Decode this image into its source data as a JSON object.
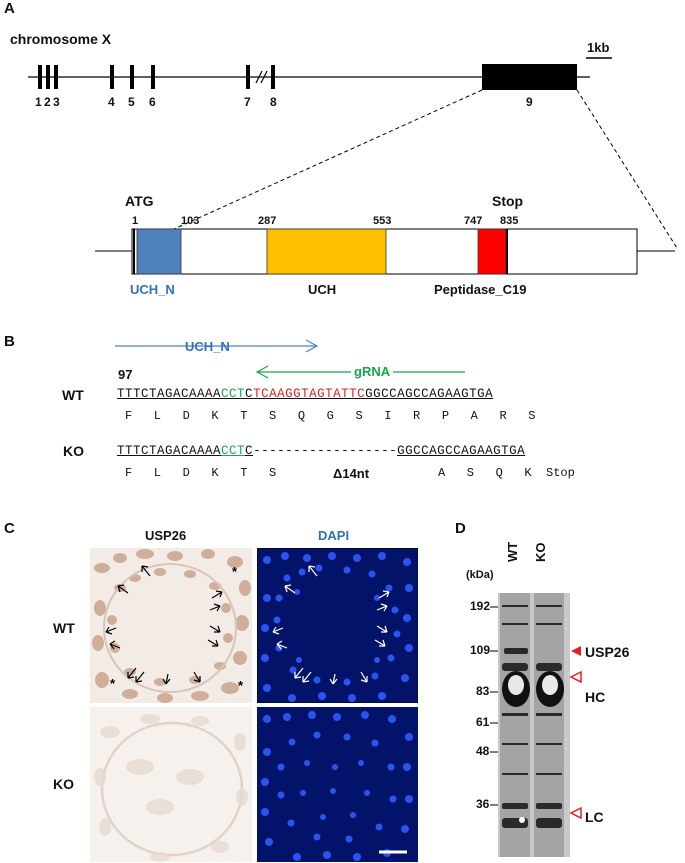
{
  "panelA": {
    "letter": "A",
    "chromosome": "chromosome X",
    "scale": "1kb",
    "exons": [
      "1",
      "2",
      "3",
      "4",
      "5",
      "6",
      "7",
      "8",
      "9"
    ],
    "atg": "ATG",
    "stop": "Stop",
    "positions": [
      "1",
      "103",
      "287",
      "553",
      "747",
      "835"
    ],
    "domains": [
      {
        "name": "UCH_N",
        "color": "#4f81bd"
      },
      {
        "name": "UCH",
        "color": "#ffc000"
      },
      {
        "name": "Peptidase_C19",
        "color": "#ff0000"
      }
    ]
  },
  "panelB": {
    "letter": "B",
    "uch_n": "UCH_N",
    "grna": "gRNA",
    "pos": "97",
    "wt_label": "WT",
    "wt_seq_a": "TTTCTAGACAAAA",
    "wt_seq_pam": "CCT",
    "wt_seq_c": "C",
    "wt_seq_red": "TCAAGGTAGTATTC",
    "wt_seq_rest": "GGCCAGCCAGAAGTGA",
    "wt_aa": "F   L   D   K   T   S   Q   G   S   I   R   P   A   R   S",
    "ko_label": "KO",
    "ko_seq_a": "TTTCTAGACAAAA",
    "ko_seq_pam": "CCT",
    "ko_seq_c": "C",
    "ko_dash": "------------------",
    "ko_seq_rest": "GGCCAGCCAGAAGTGA",
    "ko_aa_a": "F   L   D   K   T   S",
    "ko_delta": "Δ14nt",
    "ko_aa_b": "A   S   Q   K  Stop"
  },
  "panelC": {
    "letter": "C",
    "col1": "USP26",
    "col2": "DAPI",
    "row1": "WT",
    "row2": "KO"
  },
  "panelD": {
    "letter": "D",
    "kda": "(kDa)",
    "lanes": [
      "WT",
      "KO"
    ],
    "markers": [
      "192",
      "109",
      "83",
      "61",
      "48",
      "36"
    ],
    "bands": [
      {
        "label": "USP26",
        "type": "filled"
      },
      {
        "label": "HC",
        "type": "open"
      },
      {
        "label": "LC",
        "type": "open"
      }
    ]
  }
}
